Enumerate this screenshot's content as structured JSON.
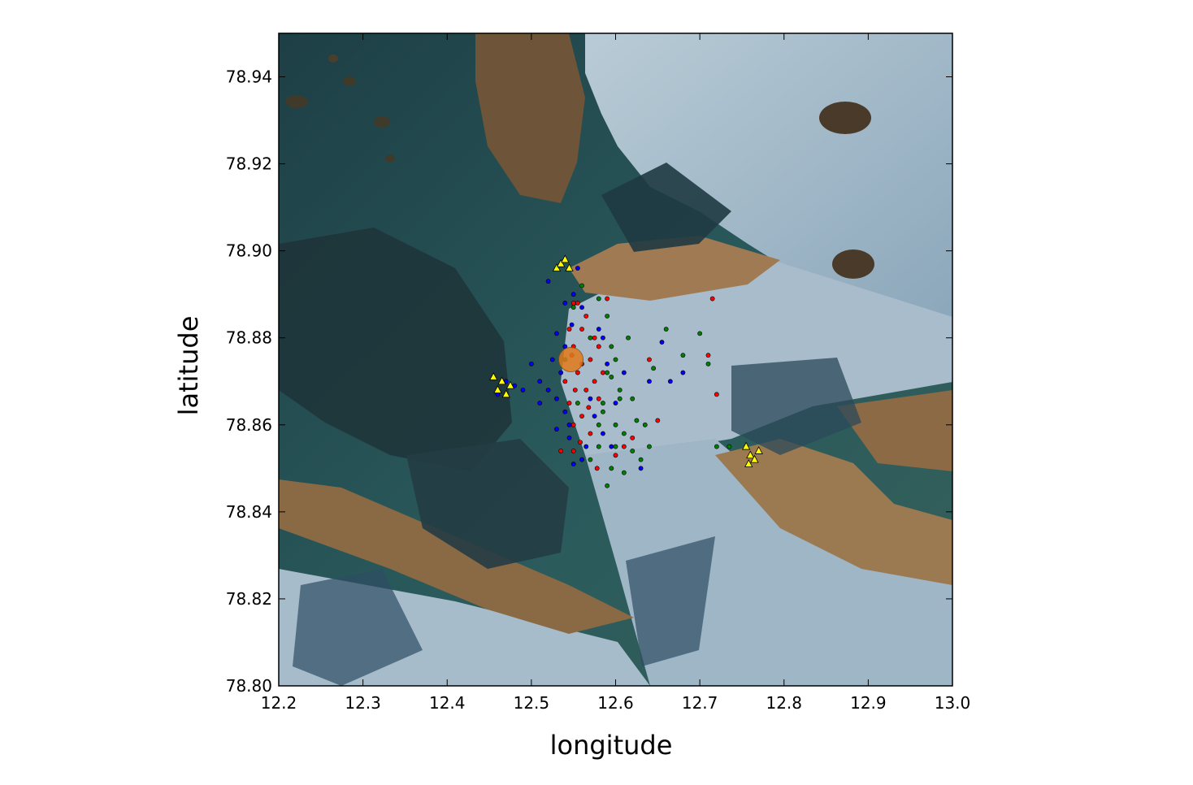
{
  "chart_data": {
    "type": "scatter",
    "title": "",
    "xlabel": "longitude",
    "ylabel": "latitude",
    "xlim": [
      12.2,
      13.0
    ],
    "ylim": [
      78.8,
      78.95
    ],
    "x_ticks": [
      12.2,
      12.3,
      12.4,
      12.5,
      12.6,
      12.7,
      12.8,
      12.9,
      13.0
    ],
    "x_tick_labels": [
      "12.2",
      "12.3",
      "12.4",
      "12.5",
      "12.6",
      "12.7",
      "12.8",
      "12.9",
      "13.0"
    ],
    "y_ticks": [
      78.8,
      78.82,
      78.84,
      78.86,
      78.88,
      78.9,
      78.92,
      78.94
    ],
    "y_tick_labels": [
      "78.80",
      "78.82",
      "78.84",
      "78.86",
      "78.88",
      "78.90",
      "78.92",
      "78.94"
    ],
    "grid": false,
    "background": "satellite image of glacier and fjord",
    "series": [
      {
        "marker": "circle",
        "color": "#ff0000",
        "points": [
          [
            12.55,
            78.878
          ],
          [
            12.56,
            78.882
          ],
          [
            12.555,
            78.872
          ],
          [
            12.565,
            78.868
          ],
          [
            12.545,
            78.865
          ],
          [
            12.57,
            78.875
          ],
          [
            12.56,
            78.862
          ],
          [
            12.55,
            78.86
          ],
          [
            12.575,
            78.87
          ],
          [
            12.565,
            78.885
          ],
          [
            12.555,
            78.888
          ],
          [
            12.58,
            78.866
          ],
          [
            12.54,
            78.87
          ],
          [
            12.57,
            78.858
          ],
          [
            12.56,
            78.874
          ],
          [
            12.552,
            78.868
          ],
          [
            12.548,
            78.876
          ],
          [
            12.575,
            78.88
          ],
          [
            12.568,
            78.864
          ],
          [
            12.558,
            78.856
          ],
          [
            12.585,
            78.872
          ],
          [
            12.545,
            78.882
          ],
          [
            12.55,
            78.854
          ],
          [
            12.535,
            78.854
          ],
          [
            12.55,
            78.888
          ],
          [
            12.58,
            78.878
          ],
          [
            12.6,
            78.853
          ],
          [
            12.61,
            78.855
          ],
          [
            12.62,
            78.857
          ],
          [
            12.715,
            78.889
          ],
          [
            12.71,
            78.876
          ],
          [
            12.72,
            78.867
          ],
          [
            12.65,
            78.861
          ],
          [
            12.59,
            78.889
          ],
          [
            12.578,
            78.85
          ],
          [
            12.64,
            78.875
          ]
        ]
      },
      {
        "marker": "circle",
        "color": "#0000ff",
        "points": [
          [
            12.54,
            78.878
          ],
          [
            12.535,
            78.872
          ],
          [
            12.545,
            78.86
          ],
          [
            12.53,
            78.866
          ],
          [
            12.55,
            78.89
          ],
          [
            12.56,
            78.887
          ],
          [
            12.575,
            78.862
          ],
          [
            12.565,
            78.855
          ],
          [
            12.585,
            78.858
          ],
          [
            12.54,
            78.888
          ],
          [
            12.53,
            78.859
          ],
          [
            12.525,
            78.875
          ],
          [
            12.52,
            78.868
          ],
          [
            12.51,
            78.87
          ],
          [
            12.5,
            78.874
          ],
          [
            12.49,
            78.868
          ],
          [
            12.54,
            78.863
          ],
          [
            12.548,
            78.883
          ],
          [
            12.57,
            78.866
          ],
          [
            12.58,
            78.882
          ],
          [
            12.59,
            78.874
          ],
          [
            12.585,
            78.88
          ],
          [
            12.55,
            78.851
          ],
          [
            12.56,
            78.852
          ],
          [
            12.595,
            78.855
          ],
          [
            12.63,
            78.85
          ],
          [
            12.64,
            78.87
          ],
          [
            12.655,
            78.879
          ],
          [
            12.665,
            78.87
          ],
          [
            12.68,
            78.872
          ],
          [
            12.51,
            78.865
          ],
          [
            12.52,
            78.893
          ],
          [
            12.46,
            78.867
          ],
          [
            12.48,
            78.869
          ],
          [
            12.47,
            78.87
          ],
          [
            12.555,
            78.896
          ],
          [
            12.53,
            78.881
          ],
          [
            12.6,
            78.865
          ],
          [
            12.61,
            78.872
          ],
          [
            12.545,
            78.857
          ]
        ]
      },
      {
        "marker": "circle",
        "color": "#008000",
        "points": [
          [
            12.59,
            78.872
          ],
          [
            12.595,
            78.878
          ],
          [
            12.6,
            78.875
          ],
          [
            12.605,
            78.868
          ],
          [
            12.585,
            78.865
          ],
          [
            12.58,
            78.86
          ],
          [
            12.6,
            78.86
          ],
          [
            12.61,
            78.858
          ],
          [
            12.62,
            78.854
          ],
          [
            12.63,
            78.852
          ],
          [
            12.64,
            78.855
          ],
          [
            12.625,
            78.861
          ],
          [
            12.595,
            78.85
          ],
          [
            12.61,
            78.849
          ],
          [
            12.605,
            78.866
          ],
          [
            12.59,
            78.885
          ],
          [
            12.58,
            78.889
          ],
          [
            12.56,
            78.892
          ],
          [
            12.55,
            78.887
          ],
          [
            12.66,
            78.882
          ],
          [
            12.68,
            78.876
          ],
          [
            12.7,
            78.881
          ],
          [
            12.71,
            78.874
          ],
          [
            12.735,
            78.855
          ],
          [
            12.72,
            78.855
          ],
          [
            12.62,
            78.866
          ],
          [
            12.615,
            78.88
          ],
          [
            12.6,
            78.855
          ],
          [
            12.555,
            78.865
          ],
          [
            12.57,
            78.88
          ],
          [
            12.54,
            78.875
          ],
          [
            12.58,
            78.855
          ],
          [
            12.57,
            78.852
          ],
          [
            12.59,
            78.846
          ],
          [
            12.585,
            78.863
          ],
          [
            12.635,
            78.86
          ],
          [
            12.645,
            78.873
          ],
          [
            12.595,
            78.871
          ]
        ]
      },
      {
        "marker": "triangle",
        "color": "#ffff00",
        "points": [
          [
            12.53,
            78.896
          ],
          [
            12.535,
            78.897
          ],
          [
            12.54,
            78.898
          ],
          [
            12.545,
            78.896
          ],
          [
            12.455,
            78.871
          ],
          [
            12.465,
            78.87
          ],
          [
            12.475,
            78.869
          ],
          [
            12.46,
            78.868
          ],
          [
            12.47,
            78.867
          ],
          [
            12.755,
            78.855
          ],
          [
            12.76,
            78.853
          ],
          [
            12.765,
            78.852
          ],
          [
            12.77,
            78.854
          ],
          [
            12.758,
            78.851
          ]
        ]
      },
      {
        "marker": "big-circle",
        "color": "#e07a1a",
        "points": [
          [
            12.547,
            78.875
          ]
        ]
      }
    ]
  }
}
